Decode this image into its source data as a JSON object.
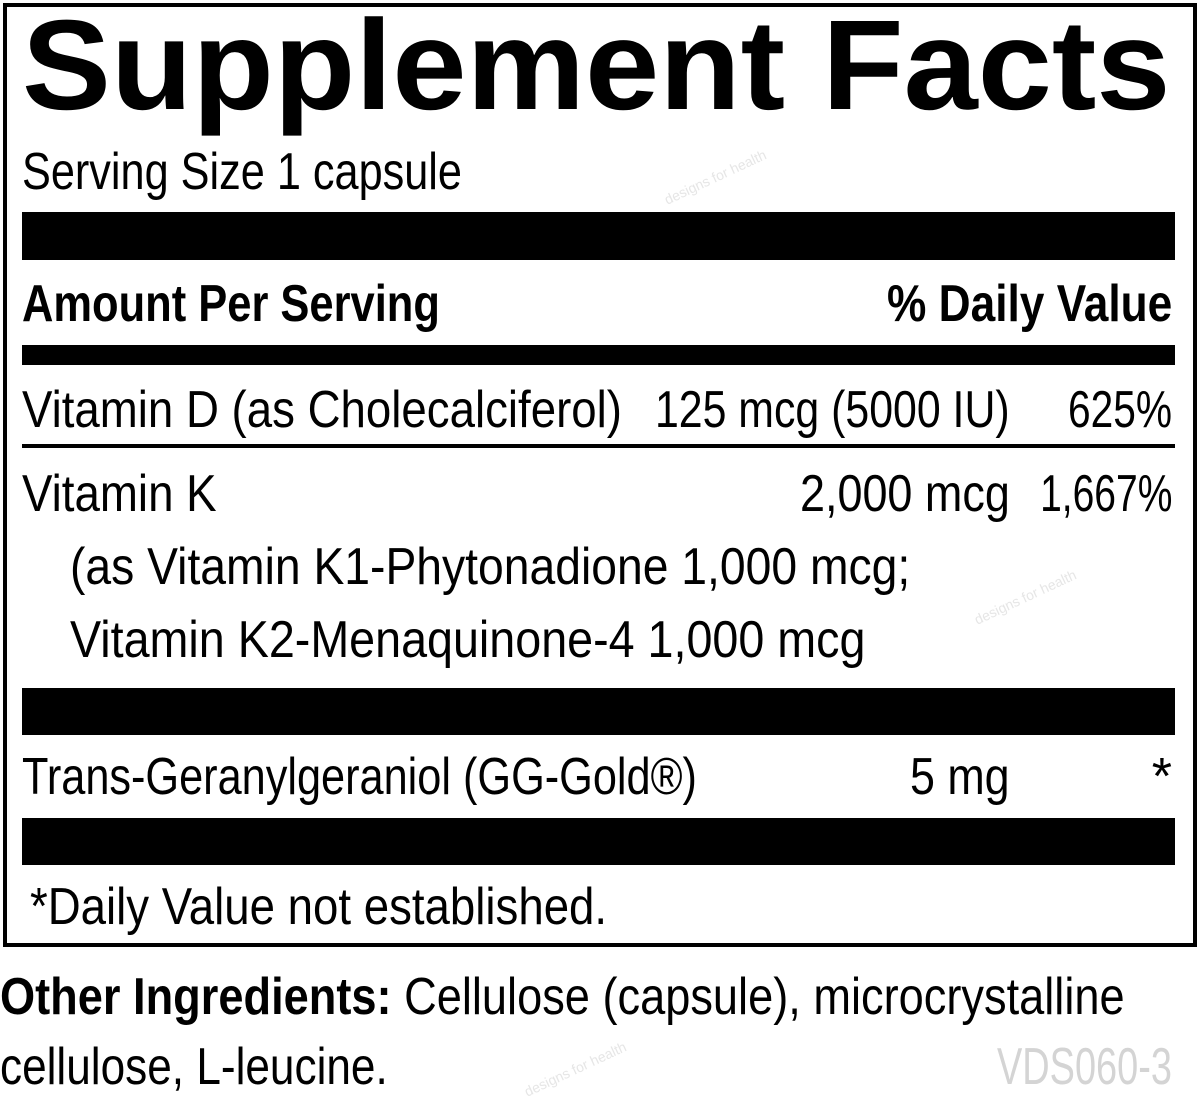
{
  "title": "Supplement Facts",
  "serving_size": "Serving Size 1 capsule",
  "header": {
    "amount": "Amount Per Serving",
    "daily_value": "% Daily Value"
  },
  "rows": [
    {
      "name": "Vitamin D (as Cholecalciferol)",
      "amount": "125 mcg (5000 IU)",
      "dv": "625%"
    },
    {
      "name": "Vitamin K",
      "amount": "2,000 mcg",
      "dv": "1,667%",
      "sub": [
        "(as Vitamin K1-Phytonadione 1,000 mcg;",
        "Vitamin K2-Menaquinone-4 1,000 mcg"
      ]
    },
    {
      "name": "Trans-Geranylgeraniol (GG-Gold®)",
      "amount": "5 mg",
      "dv": "*"
    }
  ],
  "footnote": "*Daily Value not established.",
  "other_ingredients": {
    "label": "Other Ingredients:",
    "line1": " Cellulose (capsule), microcrystalline",
    "line2": "cellulose, L-leucine."
  },
  "code": "VDS060-3",
  "watermark": "designs for health"
}
